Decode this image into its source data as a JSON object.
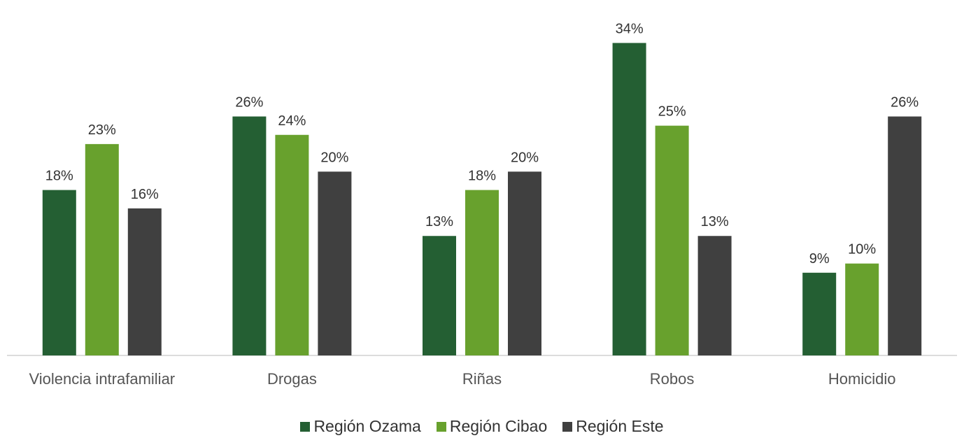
{
  "chart_data": {
    "type": "bar",
    "categories": [
      "Violencia intrafamiliar",
      "Drogas",
      "Riñas",
      "Robos",
      "Homicidio"
    ],
    "series": [
      {
        "name": "Región Ozama",
        "color": "#245f33",
        "values": [
          18,
          26,
          13,
          34,
          9
        ],
        "labels": [
          "18%",
          "26%",
          "13%",
          "34%",
          "9%"
        ]
      },
      {
        "name": "Región Cibao",
        "color": "#68a12d",
        "values": [
          23,
          24,
          18,
          25,
          10
        ],
        "labels": [
          "23%",
          "24%",
          "18%",
          "25%",
          "10%"
        ]
      },
      {
        "name": "Región Este",
        "color": "#404040",
        "values": [
          16,
          20,
          20,
          13,
          26
        ],
        "labels": [
          "16%",
          "20%",
          "20%",
          "13%",
          "26%"
        ]
      }
    ],
    "ylim": [
      0,
      37
    ],
    "grid": false,
    "legend_position": "bottom"
  }
}
